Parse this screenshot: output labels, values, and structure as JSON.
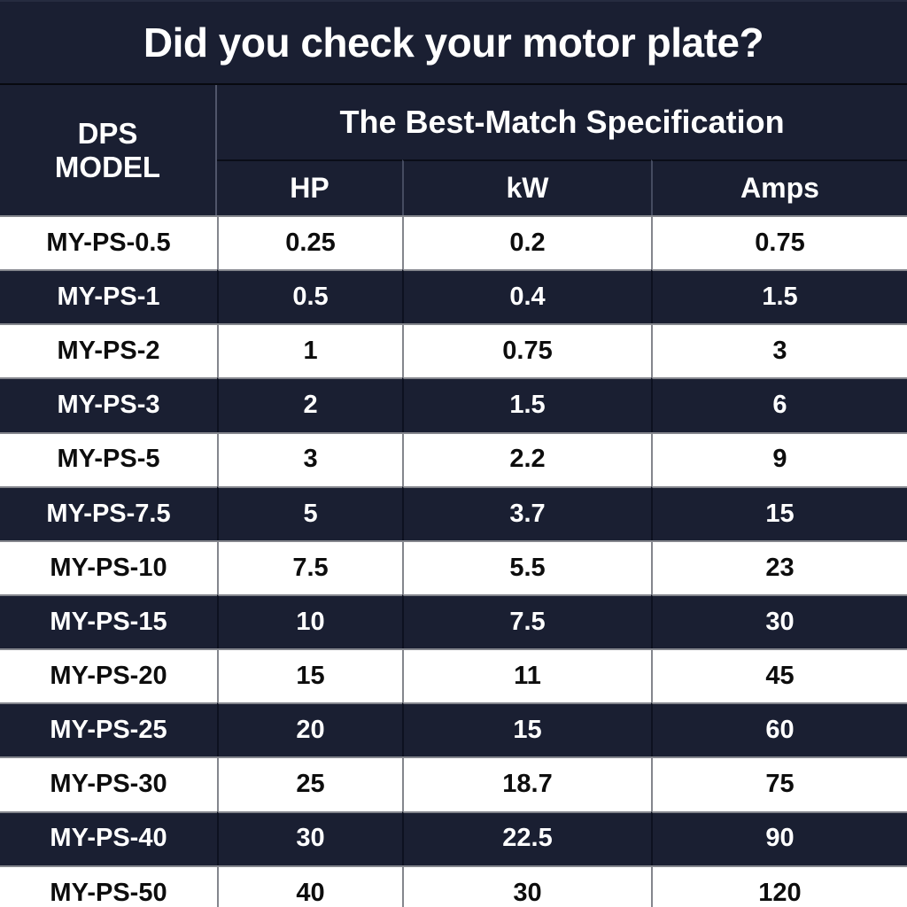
{
  "title": "Did you check your motor plate?",
  "table": {
    "model_header": {
      "line1": "DPS",
      "line2": "MODEL"
    },
    "spec_header": "The Best-Match Specification",
    "columns": {
      "hp": "HP",
      "kw": "kW",
      "amps": "Amps"
    },
    "rows": [
      {
        "model": "MY-PS-0.5",
        "hp": "0.25",
        "kw": "0.2",
        "amps": "0.75"
      },
      {
        "model": "MY-PS-1",
        "hp": "0.5",
        "kw": "0.4",
        "amps": "1.5"
      },
      {
        "model": "MY-PS-2",
        "hp": "1",
        "kw": "0.75",
        "amps": "3"
      },
      {
        "model": "MY-PS-3",
        "hp": "2",
        "kw": "1.5",
        "amps": "6"
      },
      {
        "model": "MY-PS-5",
        "hp": "3",
        "kw": "2.2",
        "amps": "9"
      },
      {
        "model": "MY-PS-7.5",
        "hp": "5",
        "kw": "3.7",
        "amps": "15"
      },
      {
        "model": "MY-PS-10",
        "hp": "7.5",
        "kw": "5.5",
        "amps": "23"
      },
      {
        "model": "MY-PS-15",
        "hp": "10",
        "kw": "7.5",
        "amps": "30"
      },
      {
        "model": "MY-PS-20",
        "hp": "15",
        "kw": "11",
        "amps": "45"
      },
      {
        "model": "MY-PS-25",
        "hp": "20",
        "kw": "15",
        "amps": "60"
      },
      {
        "model": "MY-PS-30",
        "hp": "25",
        "kw": "18.7",
        "amps": "75"
      },
      {
        "model": "MY-PS-40",
        "hp": "30",
        "kw": "22.5",
        "amps": "90"
      },
      {
        "model": "MY-PS-50",
        "hp": "40",
        "kw": "30",
        "amps": "120"
      }
    ]
  },
  "colors": {
    "navy_background": "#1a1f32",
    "accent_orange": "#f3a722",
    "light_row_border": "#84868d",
    "dark_row_border": "#0d1120",
    "text_light": "#ffffff",
    "text_dark": "#0d0d0d"
  }
}
